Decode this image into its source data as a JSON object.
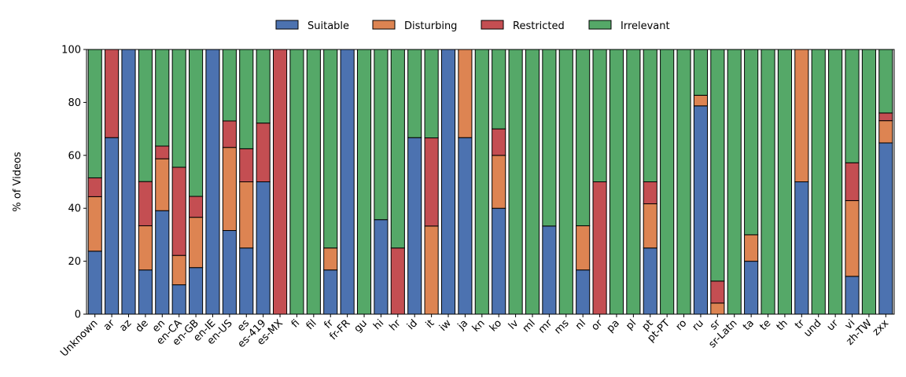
{
  "chart_data": {
    "type": "bar",
    "stacked": true,
    "title": "",
    "xlabel": "",
    "ylabel": "% of Videos",
    "ylim": [
      0,
      100
    ],
    "yticks": [
      0,
      20,
      40,
      60,
      80,
      100
    ],
    "grid": false,
    "legend_position": "top-center",
    "categories": [
      "Unknown",
      "ar",
      "az",
      "de",
      "en",
      "en-CA",
      "en-GB",
      "en-IE",
      "en-US",
      "es",
      "es-419",
      "es-MX",
      "fi",
      "fil",
      "fr",
      "fr-FR",
      "gu",
      "hi",
      "hr",
      "id",
      "it",
      "iw",
      "ja",
      "kn",
      "ko",
      "lv",
      "ml",
      "mr",
      "ms",
      "nl",
      "or",
      "pa",
      "pl",
      "pt",
      "pt-PT",
      "ro",
      "ru",
      "sr",
      "sr-Latn",
      "ta",
      "te",
      "th",
      "tr",
      "und",
      "ur",
      "vi",
      "zh-TW",
      "zxx"
    ],
    "series": [
      {
        "name": "Suitable",
        "color": "#4c72b0",
        "values": [
          23.8,
          66.7,
          100,
          16.7,
          39.1,
          11.1,
          17.6,
          100,
          31.6,
          25,
          50,
          0,
          0,
          0,
          16.7,
          100,
          0,
          35.7,
          0,
          66.7,
          0,
          100,
          66.7,
          0,
          40,
          0,
          0,
          33.3,
          0,
          16.7,
          0,
          0,
          0,
          25,
          0,
          0,
          78.7,
          0,
          0,
          20,
          0,
          0,
          50,
          0,
          0,
          14.3,
          0,
          64.7
        ]
      },
      {
        "name": "Disturbing",
        "color": "#dd8452",
        "values": [
          20.6,
          0,
          0,
          16.7,
          19.6,
          11.1,
          19,
          0,
          31.4,
          25,
          0,
          0,
          0,
          0,
          8.3,
          0,
          0,
          0,
          0,
          0,
          33.3,
          0,
          33.3,
          0,
          20,
          0,
          0,
          0,
          0,
          16.7,
          0,
          0,
          0,
          16.7,
          0,
          0,
          4,
          4.2,
          0,
          10,
          0,
          0,
          50,
          0,
          0,
          28.6,
          0,
          8.4
        ]
      },
      {
        "name": "Restricted",
        "color": "#c44e52",
        "values": [
          7.1,
          33.3,
          0,
          16.7,
          4.8,
          33.3,
          7.9,
          0,
          10,
          12.5,
          22.2,
          100,
          0,
          0,
          0,
          0,
          0,
          0,
          25,
          0,
          33.3,
          0,
          0,
          0,
          10,
          0,
          0,
          0,
          0,
          0,
          50,
          0,
          0,
          8.3,
          0,
          0,
          0,
          8.3,
          0,
          0,
          0,
          0,
          0,
          0,
          0,
          14.3,
          0,
          2.9
        ]
      },
      {
        "name": "Irrelevant",
        "color": "#55a868",
        "values": [
          48.5,
          0,
          0,
          49.9,
          36.5,
          44.5,
          55.5,
          0,
          27,
          37.5,
          27.8,
          0,
          100,
          100,
          75,
          0,
          100,
          64.3,
          75,
          33.3,
          33.4,
          0,
          0,
          100,
          30,
          100,
          100,
          66.7,
          100,
          66.6,
          50,
          100,
          100,
          50,
          100,
          100,
          17.3,
          87.5,
          100,
          70,
          100,
          100,
          0,
          100,
          100,
          42.8,
          100,
          24
        ]
      }
    ]
  }
}
